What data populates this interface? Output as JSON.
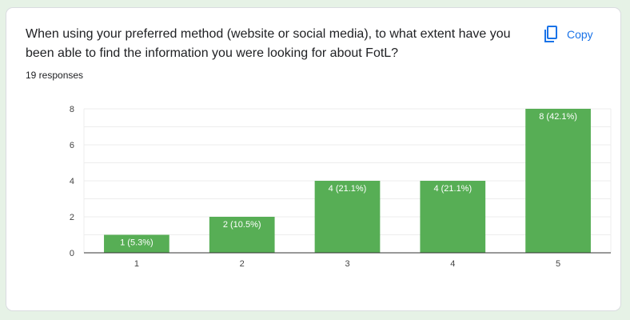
{
  "question": "When using your preferred method (website or social media), to what extent have you been able to find the information you were looking for about FotL?",
  "responses_label": "19 responses",
  "copy_label": "Copy",
  "colors": {
    "bar": "#57ae55",
    "accent": "#1a73e8"
  },
  "icons": {
    "copy": "copy-icon"
  },
  "chart_data": {
    "type": "bar",
    "categories": [
      "1",
      "2",
      "3",
      "4",
      "5"
    ],
    "values": [
      1,
      2,
      4,
      4,
      8
    ],
    "data_labels": [
      "1 (5.3%)",
      "2 (10.5%)",
      "4 (21.1%)",
      "4 (21.1%)",
      "8 (42.1%)"
    ],
    "yticks": [
      0,
      2,
      4,
      6,
      8
    ],
    "ylim": [
      0,
      8
    ],
    "grid": true,
    "title": "",
    "xlabel": "",
    "ylabel": ""
  }
}
